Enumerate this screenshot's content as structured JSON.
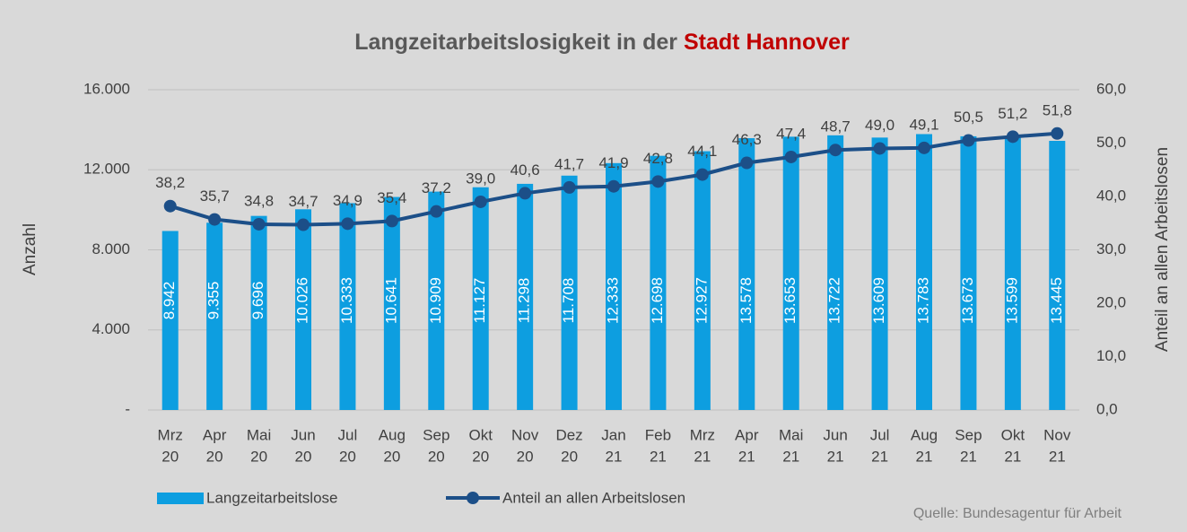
{
  "chart_data": {
    "type": "bar_line",
    "title": "Langzeitarbeitslosigkeit in der",
    "title_highlight": "Stadt Hannover",
    "ylabel": "Anzahl",
    "y2label": "Anteil an allen Arbeitslosen",
    "source": "Quelle: Bundesagentur für Arbeit",
    "categories": [
      [
        "Mrz",
        "20"
      ],
      [
        "Apr",
        "20"
      ],
      [
        "Mai",
        "20"
      ],
      [
        "Jun",
        "20"
      ],
      [
        "Jul",
        "20"
      ],
      [
        "Aug",
        "20"
      ],
      [
        "Sep",
        "20"
      ],
      [
        "Okt",
        "20"
      ],
      [
        "Nov",
        "20"
      ],
      [
        "Dez",
        "20"
      ],
      [
        "Jan",
        "21"
      ],
      [
        "Feb",
        "21"
      ],
      [
        "Mrz",
        "21"
      ],
      [
        "Apr",
        "21"
      ],
      [
        "Mai",
        "21"
      ],
      [
        "Jun",
        "21"
      ],
      [
        "Jul",
        "21"
      ],
      [
        "Aug",
        "21"
      ],
      [
        "Sep",
        "21"
      ],
      [
        "Okt",
        "21"
      ],
      [
        "Nov",
        "21"
      ]
    ],
    "series": [
      {
        "name": "Langzeitarbeitslose",
        "type": "bar",
        "color": "#0d9ee0",
        "values": [
          8942,
          9355,
          9696,
          10026,
          10333,
          10641,
          10909,
          11127,
          11298,
          11708,
          12333,
          12698,
          12927,
          13578,
          13653,
          13722,
          13609,
          13783,
          13673,
          13599,
          13445
        ],
        "value_labels": [
          "8.942",
          "9.355",
          "9.696",
          "10.026",
          "10.333",
          "10.641",
          "10.909",
          "11.127",
          "11.298",
          "11.708",
          "12.333",
          "12.698",
          "12.927",
          "13.578",
          "13.653",
          "13.722",
          "13.609",
          "13.783",
          "13.673",
          "13.599",
          "13.445"
        ]
      },
      {
        "name": "Anteil an allen Arbeitslosen",
        "type": "line",
        "axis": "y2",
        "color": "#1c4f88",
        "values": [
          38.2,
          35.7,
          34.8,
          34.7,
          34.9,
          35.4,
          37.2,
          39.0,
          40.6,
          41.7,
          41.9,
          42.8,
          44.1,
          46.3,
          47.4,
          48.7,
          49.0,
          49.1,
          50.5,
          51.2,
          51.8
        ],
        "value_labels": [
          "38,2",
          "35,7",
          "34,8",
          "34,7",
          "34,9",
          "35,4",
          "37,2",
          "39,0",
          "40,6",
          "41,7",
          "41,9",
          "42,8",
          "44,1",
          "46,3",
          "47,4",
          "48,7",
          "49,0",
          "49,1",
          "50,5",
          "51,2",
          "51,8"
        ]
      }
    ],
    "ylim": [
      0,
      16000
    ],
    "yticks": [
      {
        "value": 0,
        "label": "-"
      },
      {
        "value": 4000,
        "label": "4.000"
      },
      {
        "value": 8000,
        "label": "8.000"
      },
      {
        "value": 12000,
        "label": "12.000"
      },
      {
        "value": 16000,
        "label": "16.000"
      }
    ],
    "y2lim": [
      0,
      60
    ],
    "y2ticks": [
      {
        "value": 0,
        "label": "0,0"
      },
      {
        "value": 10,
        "label": "10,0"
      },
      {
        "value": 20,
        "label": "20,0"
      },
      {
        "value": 30,
        "label": "30,0"
      },
      {
        "value": 40,
        "label": "40,0"
      },
      {
        "value": 50,
        "label": "50,0"
      },
      {
        "value": 60,
        "label": "60,0"
      }
    ],
    "grid": true,
    "title_highlight_color": "#c00000"
  }
}
